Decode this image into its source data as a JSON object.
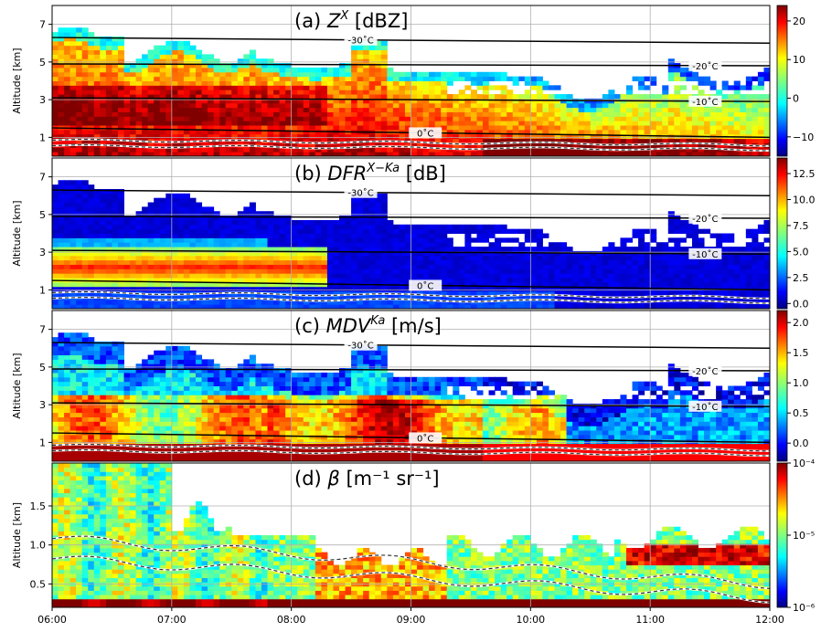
{
  "chart_data": {
    "type": "heatmap",
    "x_ticks": [
      "06:00",
      "07:00",
      "08:00",
      "09:00",
      "10:00",
      "11:00",
      "12:00"
    ],
    "panels": [
      {
        "id": "a",
        "title_parts": {
          "pre": "(a) ",
          "sym": "Z",
          "sup": "X",
          "post": " [dBZ]"
        },
        "ylabel": "Altitude [km]",
        "ylim": [
          0,
          8
        ],
        "y_ticks": [
          1,
          3,
          5,
          7
        ],
        "y_tick_labels": [
          "1",
          "3",
          "5",
          "7"
        ],
        "colorbar": {
          "min": -15,
          "max": 24,
          "ticks": [
            -10,
            0,
            10,
            20
          ],
          "tick_labels": [
            "−10",
            "0",
            "10",
            "20"
          ],
          "log": false
        },
        "isotherms": [
          {
            "label": "-30˚C",
            "y": [
              6.3,
              6.0
            ],
            "label_x": 0.43
          },
          {
            "label": "-20˚C",
            "y": [
              4.9,
              4.8
            ],
            "label_x": 0.91
          },
          {
            "label": "-10˚C",
            "y": [
              3.1,
              2.9
            ],
            "label_x": 0.91
          },
          {
            "label": "0˚C",
            "y": [
              1.5,
              1.0
            ],
            "label_x": 0.52
          }
        ]
      },
      {
        "id": "b",
        "title_parts": {
          "pre": "(b) ",
          "sym": "DFR",
          "sup": "X−Ka",
          "post": " [dB]"
        },
        "ylabel": "Altitude [km]",
        "ylim": [
          0,
          8
        ],
        "y_ticks": [
          1,
          3,
          5,
          7
        ],
        "y_tick_labels": [
          "1",
          "3",
          "5",
          "7"
        ],
        "colorbar": {
          "min": -0.5,
          "max": 14,
          "ticks": [
            0,
            2.5,
            5,
            7.5,
            10,
            12.5
          ],
          "tick_labels": [
            "0.0",
            "2.5",
            "5.0",
            "7.5",
            "10.0",
            "12.5"
          ],
          "log": false
        },
        "isotherms": [
          {
            "label": "-30˚C",
            "y": [
              6.3,
              6.0
            ],
            "label_x": 0.43
          },
          {
            "label": "-20˚C",
            "y": [
              4.9,
              4.8
            ],
            "label_x": 0.91
          },
          {
            "label": "-10˚C",
            "y": [
              3.1,
              2.9
            ],
            "label_x": 0.91
          },
          {
            "label": "0˚C",
            "y": [
              1.5,
              1.0
            ],
            "label_x": 0.52
          }
        ]
      },
      {
        "id": "c",
        "title_parts": {
          "pre": "(c) ",
          "sym": "MDV",
          "sup": "Ka",
          "post": " [m/s]"
        },
        "ylabel": "Altitude [km]",
        "ylim": [
          0,
          8
        ],
        "y_ticks": [
          1,
          3,
          5,
          7
        ],
        "y_tick_labels": [
          "1",
          "3",
          "5",
          "7"
        ],
        "colorbar": {
          "min": -0.3,
          "max": 2.2,
          "ticks": [
            0,
            0.5,
            1,
            1.5,
            2
          ],
          "tick_labels": [
            "0.0",
            "0.5",
            "1.0",
            "1.5",
            "2.0"
          ],
          "log": false
        },
        "isotherms": [
          {
            "label": "-30˚C",
            "y": [
              6.3,
              6.0
            ],
            "label_x": 0.43
          },
          {
            "label": "-20˚C",
            "y": [
              4.9,
              4.8
            ],
            "label_x": 0.91
          },
          {
            "label": "-10˚C",
            "y": [
              3.1,
              2.9
            ],
            "label_x": 0.91
          },
          {
            "label": "0˚C",
            "y": [
              1.5,
              1.0
            ],
            "label_x": 0.52
          }
        ]
      },
      {
        "id": "d",
        "title_parts": {
          "pre": "(d) ",
          "sym": "β",
          "sup": "",
          "post": " [m⁻¹ sr⁻¹]"
        },
        "ylabel": "Altitude [km]",
        "ylim": [
          0.2,
          2.05
        ],
        "y_ticks": [
          0.5,
          1.0,
          1.5
        ],
        "y_tick_labels": [
          "0.5",
          "1.0",
          "1.5"
        ],
        "colorbar": {
          "min": -6,
          "max": -4,
          "ticks": [
            -6,
            -5,
            -4
          ],
          "tick_labels": [
            "10⁻⁶",
            "10⁻⁵",
            "10⁻⁴"
          ],
          "log": true
        },
        "isotherms": []
      }
    ]
  }
}
